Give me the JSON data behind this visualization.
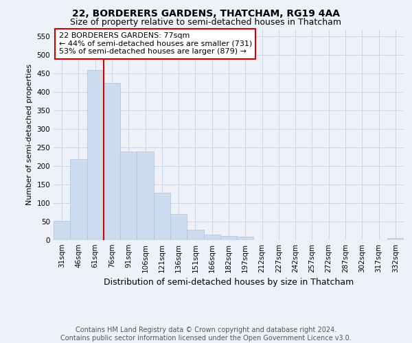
{
  "title": "22, BORDERERS GARDENS, THATCHAM, RG19 4AA",
  "subtitle": "Size of property relative to semi-detached houses in Thatcham",
  "xlabel": "Distribution of semi-detached houses by size in Thatcham",
  "ylabel": "Number of semi-detached properties",
  "footer_line1": "Contains HM Land Registry data © Crown copyright and database right 2024.",
  "footer_line2": "Contains public sector information licensed under the Open Government Licence v3.0.",
  "bar_labels": [
    "31sqm",
    "46sqm",
    "61sqm",
    "76sqm",
    "91sqm",
    "106sqm",
    "121sqm",
    "136sqm",
    "151sqm",
    "166sqm",
    "182sqm",
    "197sqm",
    "212sqm",
    "227sqm",
    "242sqm",
    "257sqm",
    "272sqm",
    "287sqm",
    "302sqm",
    "317sqm",
    "332sqm"
  ],
  "bar_values": [
    52,
    218,
    460,
    425,
    240,
    240,
    128,
    70,
    28,
    14,
    12,
    10,
    0,
    0,
    0,
    0,
    0,
    0,
    0,
    0,
    5
  ],
  "bar_color": "#ccdcee",
  "bar_edge_color": "#aac4dc",
  "vline_color": "#cc0000",
  "annotation_box_color": "#cc0000",
  "annotation_text": "22 BORDERERS GARDENS: 77sqm\n← 44% of semi-detached houses are smaller (731)\n53% of semi-detached houses are larger (879) →",
  "ylim": [
    0,
    570
  ],
  "yticks": [
    0,
    50,
    100,
    150,
    200,
    250,
    300,
    350,
    400,
    450,
    500,
    550
  ],
  "grid_color": "#c8d4e4",
  "bg_color": "#eef2f8",
  "title_fontsize": 10,
  "subtitle_fontsize": 9,
  "annotation_fontsize": 8,
  "footer_fontsize": 7,
  "ylabel_fontsize": 8,
  "xlabel_fontsize": 9,
  "tick_fontsize": 7.5,
  "vline_bin_index": 3
}
